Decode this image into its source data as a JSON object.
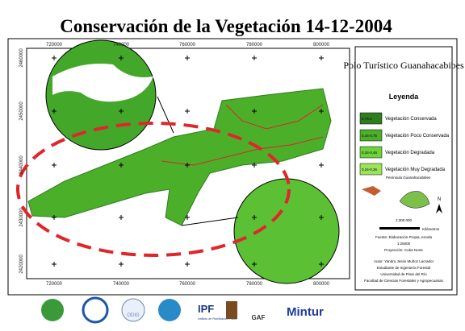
{
  "title": "Conservación de la Vegetación 14-12-2004",
  "map": {
    "x_labels_top": [
      "720000",
      "740000",
      "760000",
      "780000",
      "800000"
    ],
    "x_labels_bottom": [
      "720000",
      "740000",
      "760000",
      "780000",
      "800000"
    ],
    "y_labels_left": [
      "2460000",
      "2450000",
      "2440000",
      "2430000",
      "2420000"
    ]
  },
  "legend": {
    "subtitle": "Polo Turístico Guanahacabibes",
    "heading": "Leyenda",
    "items": [
      {
        "range": "0,76-1",
        "label": "Vegetación Conservada",
        "color": "#2f7d1e"
      },
      {
        "range": "0,44-0,75",
        "label": "Vegetación Poco Conservada",
        "color": "#4caf2a"
      },
      {
        "range": "0,34-0,46",
        "label": "Vegetación Degradada",
        "color": "#6fd23c"
      },
      {
        "range": "0,24-0,36",
        "label": "Vegetación Muy Degradada",
        "color": "#9be35a"
      }
    ],
    "inset_label": "Península Guanahacabibes",
    "north": "N",
    "scale": "1:300 000",
    "scale_unit": "Kilómetros",
    "credits": [
      "Fuente: Elaboración Propia, escala",
      "1:25000",
      "Proyección: Cuba Norte",
      "Autor: Yandro Jesús Muñoz Lacrador",
      "Estudiante de Ingeniería Forestal",
      "Universidad de Pinar del Río",
      "Facultad de Ciencias Forestales y Agropecuarias"
    ]
  },
  "logos": {
    "odig": "ODIG",
    "ipf": "IPF",
    "ipf_name": "Instituto de Planificación Física",
    "gaf": "GAF",
    "mintur": "Mintur"
  }
}
